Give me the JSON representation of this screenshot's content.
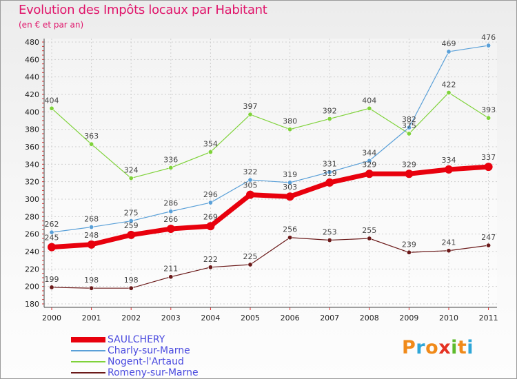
{
  "header": {
    "title": "Evolution des Impôts locaux par Habitant",
    "subtitle": "(en € et par an)"
  },
  "brand": {
    "text": "Proxiti",
    "colors": [
      "#f08a1a",
      "#2ea6d8",
      "#f08a1a",
      "#e53223",
      "#5dbb2c",
      "#f08a1a",
      "#2ea6d8"
    ]
  },
  "chart_data": {
    "type": "line",
    "x": [
      "2000",
      "2001",
      "2002",
      "2003",
      "2004",
      "2005",
      "2006",
      "2007",
      "2008",
      "2009",
      "2010",
      "2011"
    ],
    "ylim": [
      180,
      480
    ],
    "yticks": [
      180,
      200,
      220,
      240,
      260,
      280,
      300,
      320,
      340,
      360,
      380,
      400,
      420,
      440,
      460,
      480
    ],
    "grid": true,
    "legend_position": "bottom-left",
    "series": [
      {
        "name": "Romeny-sur-Marne",
        "color": "#6b1a1a",
        "values": [
          199,
          198,
          198,
          211,
          222,
          225,
          256,
          253,
          255,
          239,
          241,
          247
        ]
      },
      {
        "name": "Nogent-l'Artaud",
        "color": "#7fd23a",
        "values": [
          404,
          363,
          324,
          336,
          354,
          397,
          380,
          392,
          404,
          375,
          422,
          393
        ]
      },
      {
        "name": "Charly-sur-Marne",
        "color": "#5aa0d8",
        "values": [
          262,
          268,
          275,
          286,
          296,
          322,
          319,
          331,
          344,
          382,
          469,
          476
        ]
      },
      {
        "name": "SAULCHERY",
        "color": "#e8000d",
        "values": [
          245,
          248,
          259,
          266,
          269,
          305,
          303,
          319,
          329,
          329,
          334,
          337
        ]
      }
    ]
  },
  "legend": [
    {
      "name": "SAULCHERY",
      "color": "#e8000d"
    },
    {
      "name": "Charly-sur-Marne",
      "color": "#5aa0d8"
    },
    {
      "name": "Nogent-l'Artaud",
      "color": "#7fd23a"
    },
    {
      "name": "Romeny-sur-Marne",
      "color": "#6b1a1a"
    }
  ]
}
